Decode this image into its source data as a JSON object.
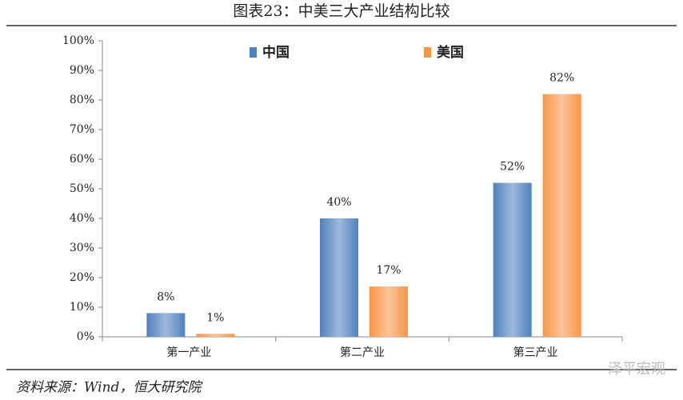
{
  "chart_data": {
    "type": "bar",
    "title": "图表23：中美三大产业结构比较",
    "categories": [
      "第一产业",
      "第二产业",
      "第三产业"
    ],
    "series": [
      {
        "name": "中国",
        "color": "#4f81bd",
        "values": [
          8,
          40,
          52
        ],
        "value_labels": [
          "8%",
          "40%",
          "52%"
        ]
      },
      {
        "name": "美国",
        "color": "#f79646",
        "values": [
          1,
          17,
          82
        ],
        "value_labels": [
          "1%",
          "17%",
          "82%"
        ]
      }
    ],
    "ylim": [
      0,
      100
    ],
    "yticks": [
      {
        "value": 0,
        "label": "0%"
      },
      {
        "value": 10,
        "label": "10%"
      },
      {
        "value": 20,
        "label": "20%"
      },
      {
        "value": 30,
        "label": "30%"
      },
      {
        "value": 40,
        "label": "40%"
      },
      {
        "value": 50,
        "label": "50%"
      },
      {
        "value": 60,
        "label": "60%"
      },
      {
        "value": 70,
        "label": "70%"
      },
      {
        "value": 80,
        "label": "80%"
      },
      {
        "value": 90,
        "label": "90%"
      },
      {
        "value": 100,
        "label": "100%"
      }
    ],
    "grid": false,
    "legend": "top",
    "source": "资料来源：Wind，恒大研究院",
    "watermark": "泽平宏观"
  }
}
